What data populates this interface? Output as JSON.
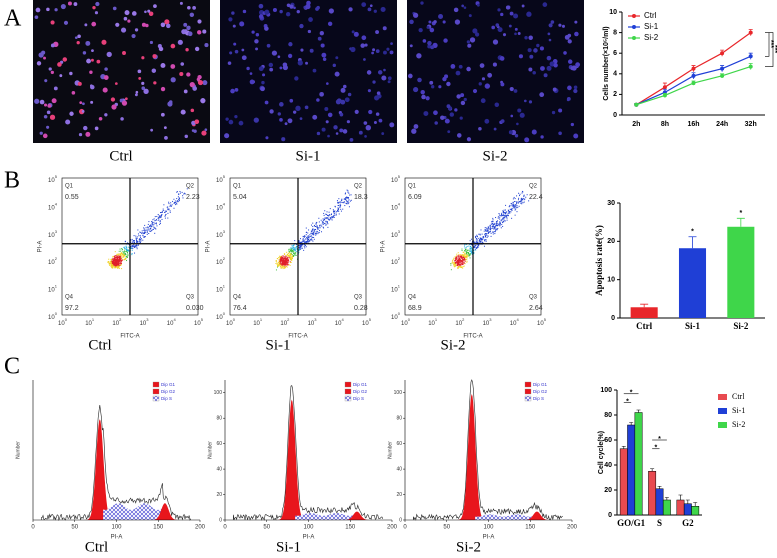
{
  "panel_labels": [
    "A",
    "B",
    "C"
  ],
  "micrographs": [
    {
      "caption": "Ctrl"
    },
    {
      "caption": "Si-1"
    },
    {
      "caption": "Si-2"
    }
  ],
  "flow_cytometry": {
    "x_label": "FITC-A",
    "y_label": "PI-A",
    "tick_base": "10",
    "tick_exponents": [
      0,
      1,
      2,
      3,
      4,
      5
    ],
    "plots": [
      {
        "caption": "Ctrl",
        "quadrants": [
          {
            "name": "Q1",
            "value": "0.55"
          },
          {
            "name": "Q2",
            "value": "2.23"
          },
          {
            "name": "Q4",
            "value": "97.2"
          },
          {
            "name": "Q3",
            "value": "0.030"
          }
        ]
      },
      {
        "caption": "Si-1",
        "quadrants": [
          {
            "name": "Q1",
            "value": "5.04"
          },
          {
            "name": "Q2",
            "value": "18.3"
          },
          {
            "name": "Q4",
            "value": "76.4"
          },
          {
            "name": "Q3",
            "value": "0.28"
          }
        ]
      },
      {
        "caption": "Si-2",
        "quadrants": [
          {
            "name": "Q1",
            "value": "6.09"
          },
          {
            "name": "Q2",
            "value": "22.4"
          },
          {
            "name": "Q4",
            "value": "68.9"
          },
          {
            "name": "Q3",
            "value": "2.64"
          }
        ]
      }
    ]
  },
  "cell_cycle_histograms": {
    "x_label": "PI-A",
    "y_label": "Number",
    "xticks": [
      0,
      50,
      100,
      150,
      200
    ],
    "legend": [
      "Dip G1",
      "Dip G2",
      "Dip S"
    ],
    "plots": [
      {
        "caption": "Ctrl"
      },
      {
        "caption": "Si-1",
        "yticks": [
          0,
          20,
          40,
          60,
          80,
          100
        ]
      },
      {
        "caption": "Si-2",
        "yticks": [
          0,
          20,
          40,
          60,
          80,
          100
        ]
      }
    ]
  },
  "chart_data": [
    {
      "type": "line",
      "y_label": "Cells number(×10⁵/ml)",
      "categories": [
        "2h",
        "8h",
        "16h",
        "24h",
        "32h"
      ],
      "series": [
        {
          "name": "Ctrl",
          "color": "#e8262a",
          "values": [
            1,
            2.7,
            4.5,
            6,
            8
          ],
          "errors": [
            0.1,
            0.4,
            0.3,
            0.3,
            0.3
          ]
        },
        {
          "name": "Si-1",
          "color": "#1f3fd6",
          "values": [
            1,
            2.2,
            3.8,
            4.5,
            5.7
          ],
          "errors": [
            0.1,
            0.3,
            0.3,
            0.3,
            0.3
          ]
        },
        {
          "name": "Si-2",
          "color": "#3fd64a",
          "values": [
            1,
            1.9,
            3.1,
            3.8,
            4.7
          ],
          "errors": [
            0.1,
            0.2,
            0.2,
            0.2,
            0.3
          ]
        }
      ],
      "ylim": [
        0,
        10
      ],
      "yticks": [
        0,
        2,
        4,
        6,
        8,
        10
      ],
      "legend": "upper left",
      "annotations": [
        "***",
        "***"
      ]
    },
    {
      "type": "bar",
      "y_label": "Apoptosis rate(%)",
      "categories": [
        "Ctrl",
        "Si-1",
        "Si-2"
      ],
      "values": [
        2.8,
        18.2,
        23.8
      ],
      "errors": [
        0.8,
        3,
        2.2
      ],
      "colors": [
        "#e8262a",
        "#1f3fd6",
        "#3fd64a"
      ],
      "ylim": [
        0,
        30
      ],
      "yticks": [
        0,
        10,
        20,
        30
      ],
      "annotations": [
        "*",
        "*"
      ]
    },
    {
      "type": "grouped_bar",
      "y_label": "Cell cycle(%)",
      "categories": [
        "GO/G1",
        "S",
        "G2"
      ],
      "series": [
        {
          "name": "Ctrl",
          "color": "#e84a50",
          "values": [
            53,
            35,
            12
          ],
          "errors": [
            2,
            2,
            4
          ]
        },
        {
          "name": "Si-1",
          "color": "#1f3fd6",
          "values": [
            72,
            21,
            9
          ],
          "errors": [
            2,
            2,
            3
          ]
        },
        {
          "name": "Si-2",
          "color": "#3fd64a",
          "values": [
            82,
            12,
            7
          ],
          "errors": [
            2,
            2,
            3
          ]
        }
      ],
      "ylim": [
        0,
        100
      ],
      "yticks": [
        0,
        20,
        40,
        60,
        80,
        100
      ],
      "legend": "right",
      "annotations": [
        "*",
        "*",
        "*",
        "*"
      ]
    }
  ]
}
